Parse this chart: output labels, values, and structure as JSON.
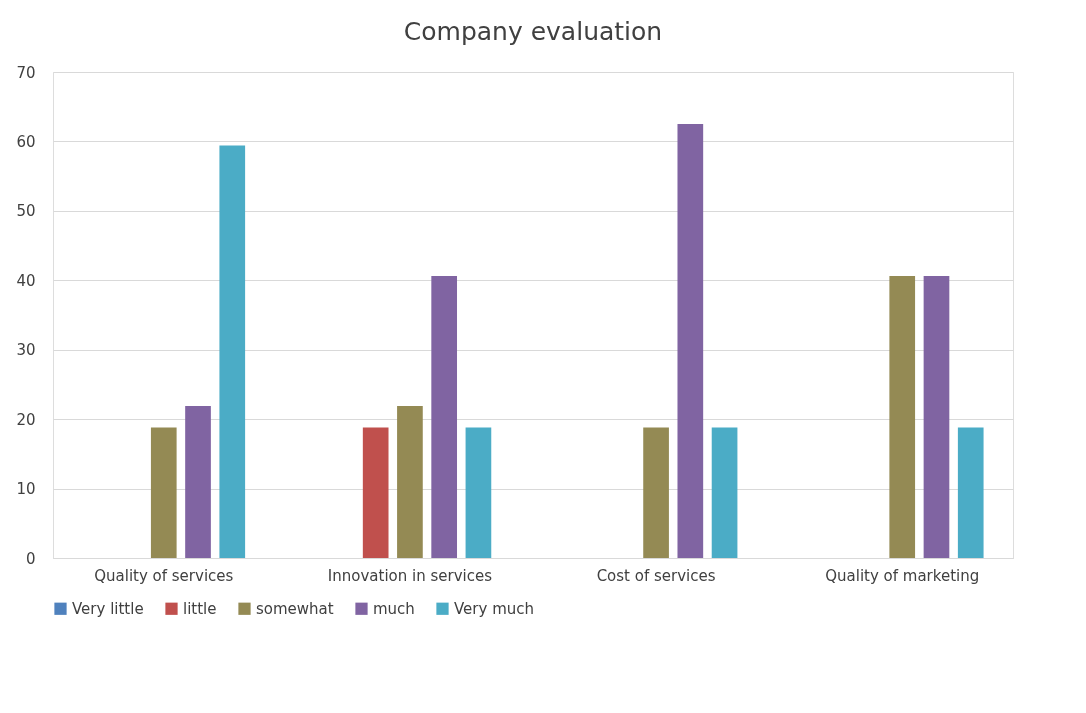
{
  "chart_data": {
    "type": "bar",
    "title": "Company evaluation",
    "categories": [
      "Quality of services",
      "Innovation in services",
      "Cost of services",
      "Quality of marketing"
    ],
    "series": [
      {
        "name": "Very little",
        "color": "#4f81bd",
        "values": [
          0,
          0,
          0,
          0
        ]
      },
      {
        "name": "little",
        "color": "#c0504d",
        "values": [
          0,
          18.8,
          0,
          0
        ]
      },
      {
        "name": "somewhat",
        "color": "#948a54",
        "values": [
          18.8,
          21.9,
          18.8,
          40.6
        ]
      },
      {
        "name": "much",
        "color": "#8064a2",
        "values": [
          21.9,
          40.6,
          62.5,
          40.6
        ]
      },
      {
        "name": "Very much",
        "color": "#4bacc6",
        "values": [
          59.4,
          18.8,
          18.8,
          18.8
        ]
      }
    ],
    "ylim": [
      0,
      70
    ],
    "yticks": [
      0,
      10,
      20,
      30,
      40,
      50,
      60,
      70
    ],
    "grid": "y",
    "legend": "bottom"
  }
}
